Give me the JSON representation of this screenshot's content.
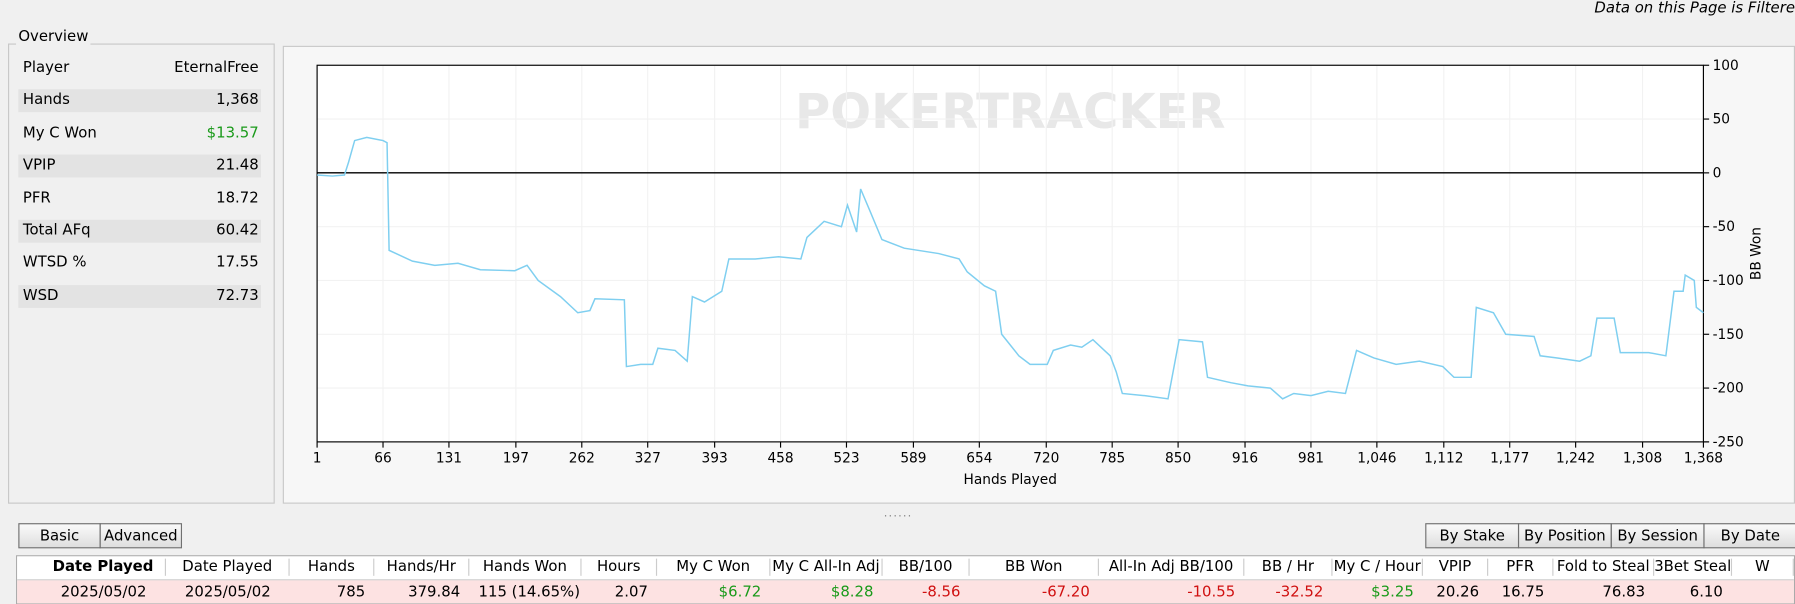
{
  "header": {
    "filter_note": "Data on this Page is Filtere"
  },
  "overview": {
    "title": "Overview",
    "rows": [
      [
        "Player",
        "EternalFree"
      ],
      [
        "Hands",
        "1,368"
      ],
      [
        "My C Won",
        "$13.57"
      ],
      [
        "VPIP",
        "21.48"
      ],
      [
        "PFR",
        "18.72"
      ],
      [
        "Total AFq",
        "60.42"
      ],
      [
        "WTSD %",
        "17.55"
      ],
      [
        "WSD",
        "72.73"
      ]
    ]
  },
  "chart_data": {
    "type": "line",
    "watermark": "POKERTRACKER",
    "x_label": "Hands Played",
    "y_label": "BB Won",
    "color": "#7fcff0",
    "grid": true,
    "y_axis_side": "right",
    "xlim": [
      1,
      1368
    ],
    "ylim": [
      -250,
      100
    ],
    "xticks": [
      1,
      66,
      131,
      197,
      262,
      327,
      393,
      458,
      523,
      589,
      654,
      720,
      785,
      850,
      916,
      981,
      {
        "value": 1046,
        "label": "1,046"
      },
      {
        "value": 1112,
        "label": "1,112"
      },
      {
        "value": 1177,
        "label": "1,177"
      },
      {
        "value": 1242,
        "label": "1,242"
      },
      {
        "value": 1308,
        "label": "1,308"
      },
      {
        "value": 1368,
        "label": "1,368"
      }
    ],
    "yticks": [
      100,
      50,
      0,
      -50,
      -100,
      -150,
      -200,
      -250
    ],
    "x": [
      1,
      16,
      28,
      32,
      38,
      50,
      66,
      70,
      72,
      95,
      117,
      140,
      162,
      196,
      208,
      219,
      241,
      258,
      270,
      275,
      304,
      306,
      320,
      332,
      337,
      354,
      366,
      371,
      383,
      400,
      407,
      433,
      456,
      478,
      484,
      501,
      518,
      524,
      533,
      537,
      546,
      558,
      580,
      614,
      634,
      642,
      659,
      670,
      676,
      693,
      704,
      721,
      727,
      744,
      755,
      766,
      783,
      789,
      795,
      817,
      840,
      851,
      874,
      879,
      902,
      919,
      941,
      953,
      964,
      981,
      998,
      1015,
      1026,
      1043,
      1065,
      1088,
      1111,
      1122,
      1139,
      1144,
      1161,
      1173,
      1201,
      1207,
      1224,
      1246,
      1257,
      1263,
      1280,
      1286,
      1314,
      1331,
      1339,
      1348,
      1350,
      1359,
      1361,
      1368
    ],
    "values": [
      -2,
      -3,
      -2,
      10,
      30,
      33,
      30,
      28,
      -72,
      -82,
      -86,
      -84,
      -90,
      -91,
      -86,
      -100,
      -115,
      -130,
      -128,
      -117,
      -118,
      -180,
      -178,
      -178,
      -163,
      -165,
      -175,
      -115,
      -120,
      -110,
      -80,
      -80,
      -78,
      -80,
      -60,
      -45,
      -50,
      -30,
      -55,
      -15,
      -35,
      -62,
      -70,
      -75,
      -80,
      -92,
      -105,
      -110,
      -150,
      -170,
      -178,
      -178,
      -165,
      -160,
      -162,
      -155,
      -170,
      -185,
      -205,
      -207,
      -210,
      -155,
      -157,
      -190,
      -195,
      -198,
      -200,
      -210,
      -205,
      -207,
      -203,
      -205,
      -165,
      -172,
      -178,
      -175,
      -180,
      -190,
      -190,
      -125,
      -130,
      -150,
      -152,
      -170,
      -172,
      -175,
      -170,
      -135,
      -135,
      -167,
      -167,
      -170,
      -110,
      -110,
      -95,
      -100,
      -125,
      -130
    ]
  },
  "buttons": {
    "left": [
      "Basic",
      "Advanced"
    ],
    "right": [
      "By Stake",
      "By Position",
      "By Session",
      "By Date"
    ]
  },
  "table": {
    "columns": [
      "Date Played",
      "Date Played",
      "Hands",
      "Hands/Hr",
      "Hands Won",
      "Hours",
      "My C Won",
      "My C All-In Adj",
      "BB/100",
      "BB Won",
      "All-In Adj BB/100",
      "BB / Hr",
      "My C / Hour",
      "VPIP",
      "PFR",
      "Fold to Steal",
      "3Bet Steal",
      "W"
    ],
    "rows": [
      [
        "2025/05/02",
        "2025/05/02",
        "785",
        "379.84",
        "115 (14.65%)",
        "2.07",
        "$6.72",
        "$8.28",
        "-8.56",
        "-67.20",
        "-10.55",
        "-32.52",
        "$3.25",
        "20.26",
        "16.75",
        "76.83",
        "6.10"
      ]
    ]
  }
}
